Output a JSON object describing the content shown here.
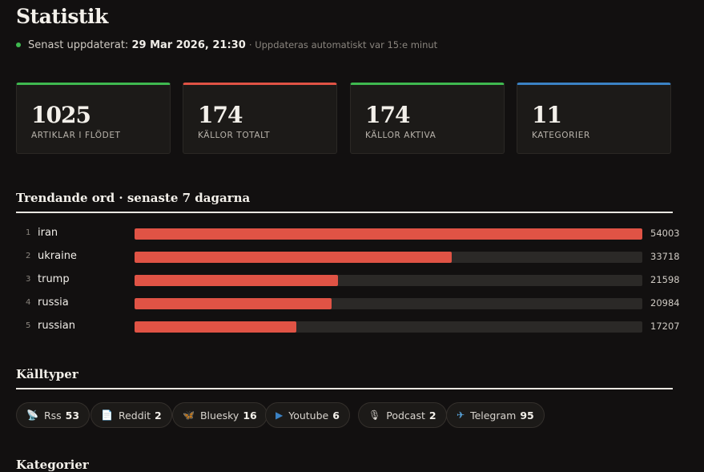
{
  "header": {
    "title": "Statistik",
    "updated_prefix": "Senast uppdaterat:",
    "updated_time": "29 Mar 2026, 21:30",
    "updated_note": "· Uppdateras automatiskt var 15:e minut"
  },
  "cards": [
    {
      "value": "1025",
      "label": "ARTIKLAR I FLÖDET",
      "accent": "#3fb950"
    },
    {
      "value": "174",
      "label": "KÄLLOR TOTALT",
      "accent": "#e05345"
    },
    {
      "value": "174",
      "label": "KÄLLOR AKTIVA",
      "accent": "#3fb950"
    },
    {
      "value": "11",
      "label": "KATEGORIER",
      "accent": "#3b82c4"
    }
  ],
  "trending": {
    "title": "Trendande ord · senaste 7 dagarna",
    "items": [
      {
        "rank": "1",
        "word": "iran",
        "count": 54003
      },
      {
        "rank": "2",
        "word": "ukraine",
        "count": 33718
      },
      {
        "rank": "3",
        "word": "trump",
        "count": 21598
      },
      {
        "rank": "4",
        "word": "russia",
        "count": 20984
      },
      {
        "rank": "5",
        "word": "russian",
        "count": 17207
      }
    ]
  },
  "source_types": {
    "title": "Källtyper",
    "items": [
      {
        "icon": "satellite-dish-icon",
        "glyph": "📡",
        "label": "Rss",
        "count": "53"
      },
      {
        "icon": "document-icon",
        "glyph": "📄",
        "label": "Reddit",
        "count": "2"
      },
      {
        "icon": "butterfly-icon",
        "glyph": "🦋",
        "label": "Bluesky",
        "count": "16"
      },
      {
        "icon": "play-icon",
        "glyph": "▶",
        "label": "Youtube",
        "count": "6"
      },
      {
        "icon": "microphone-icon",
        "glyph": "🎙",
        "label": "Podcast",
        "count": "2"
      },
      {
        "icon": "airplane-icon",
        "glyph": "✈",
        "label": "Telegram",
        "count": "95"
      }
    ]
  },
  "next_section": {
    "title": "Kategorier"
  },
  "colors": {
    "bar_fill": "#e05345",
    "status_dot": "#3fb950"
  }
}
